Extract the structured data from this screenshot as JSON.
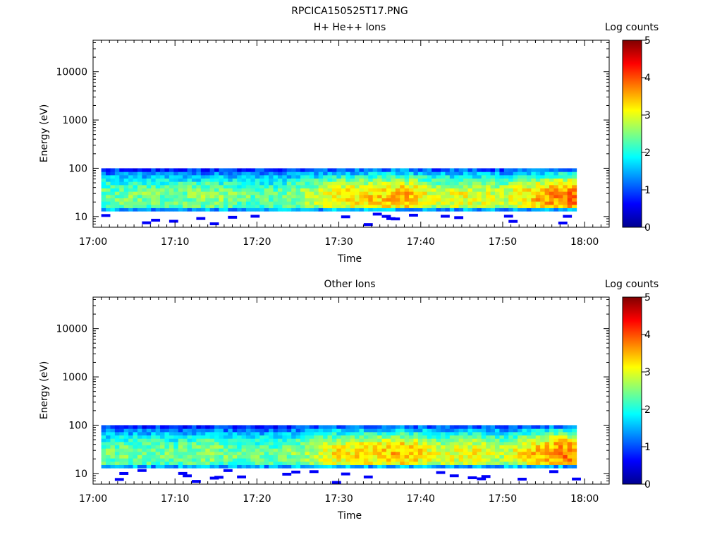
{
  "figure_title": "RPCICA150525T17.PNG",
  "chart_data": [
    {
      "type": "heatmap",
      "title": "H+ He++ Ions",
      "xlabel": "Time",
      "ylabel": "Energy (eV)",
      "x_ticks": [
        "17:00",
        "17:10",
        "17:20",
        "17:30",
        "17:40",
        "17:50",
        "18:00"
      ],
      "xlim": [
        "17:00",
        "18:03"
      ],
      "y_scale": "log",
      "y_ticks": [
        10,
        100,
        1000,
        10000
      ],
      "ylim": [
        6,
        45000
      ],
      "colorbar_label": "Log counts",
      "colorbar_ticks": [
        0,
        1,
        2,
        3,
        4,
        5
      ],
      "colormap": "jet",
      "data_time_range": [
        "17:01",
        "17:59"
      ],
      "main_energy_band_eV": [
        13,
        100
      ],
      "approx_log_counts_profile": [
        {
          "time": "17:02",
          "level": 2.4
        },
        {
          "time": "17:06",
          "level": 2.5
        },
        {
          "time": "17:10",
          "level": 2.4
        },
        {
          "time": "17:14",
          "level": 2.6
        },
        {
          "time": "17:18",
          "level": 2.4
        },
        {
          "time": "17:22",
          "level": 2.3
        },
        {
          "time": "17:26",
          "level": 2.7
        },
        {
          "time": "17:30",
          "level": 3.2
        },
        {
          "time": "17:34",
          "level": 3.3
        },
        {
          "time": "17:38",
          "level": 3.5
        },
        {
          "time": "17:42",
          "level": 2.9
        },
        {
          "time": "17:46",
          "level": 3.1
        },
        {
          "time": "17:50",
          "level": 2.8
        },
        {
          "time": "17:54",
          "level": 3.4
        },
        {
          "time": "17:57",
          "level": 3.8
        }
      ]
    },
    {
      "type": "heatmap",
      "title": "Other Ions",
      "xlabel": "Time",
      "ylabel": "Energy (eV)",
      "x_ticks": [
        "17:00",
        "17:10",
        "17:20",
        "17:30",
        "17:40",
        "17:50",
        "18:00"
      ],
      "xlim": [
        "17:00",
        "18:03"
      ],
      "y_scale": "log",
      "y_ticks": [
        10,
        100,
        1000,
        10000
      ],
      "ylim": [
        6,
        45000
      ],
      "colorbar_label": "Log counts",
      "colorbar_ticks": [
        0,
        1,
        2,
        3,
        4,
        5
      ],
      "colormap": "jet",
      "data_time_range": [
        "17:01",
        "17:59"
      ],
      "main_energy_band_eV": [
        13,
        100
      ],
      "approx_log_counts_profile": [
        {
          "time": "17:02",
          "level": 2.4
        },
        {
          "time": "17:06",
          "level": 2.5
        },
        {
          "time": "17:10",
          "level": 2.4
        },
        {
          "time": "17:14",
          "level": 2.6
        },
        {
          "time": "17:18",
          "level": 2.4
        },
        {
          "time": "17:22",
          "level": 2.3
        },
        {
          "time": "17:26",
          "level": 2.7
        },
        {
          "time": "17:30",
          "level": 3.2
        },
        {
          "time": "17:34",
          "level": 3.3
        },
        {
          "time": "17:38",
          "level": 3.5
        },
        {
          "time": "17:42",
          "level": 2.9
        },
        {
          "time": "17:46",
          "level": 3.1
        },
        {
          "time": "17:50",
          "level": 2.8
        },
        {
          "time": "17:54",
          "level": 3.4
        },
        {
          "time": "17:57",
          "level": 3.8
        }
      ]
    }
  ]
}
